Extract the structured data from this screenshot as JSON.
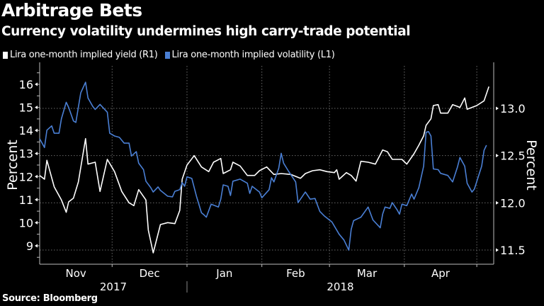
{
  "header": {
    "title": "Arbitrage Bets",
    "subtitle": "Currency volatility undermines high carry-trade potential"
  },
  "footer": {
    "source": "Source: Bloomberg"
  },
  "chart_data": {
    "type": "line",
    "title": "Arbitrage Bets",
    "subtitle": "Currency volatility undermines high carry-trade potential",
    "legend_position": "top-left",
    "grid": true,
    "x_range": [
      "2017-11-01",
      "2018-05-08"
    ],
    "x_ticks": [
      {
        "date": "2017-11-01",
        "label": "Nov"
      },
      {
        "date": "2017-12-01",
        "label": "Dec"
      },
      {
        "date": "2018-01-01",
        "label": "Jan"
      },
      {
        "date": "2018-02-01",
        "label": "Feb"
      },
      {
        "date": "2018-03-01",
        "label": "Mar"
      },
      {
        "date": "2018-04-01",
        "label": "Apr"
      },
      {
        "date": "2018-05-01",
        "label": ""
      }
    ],
    "x_years": [
      {
        "label": "2017",
        "start": "2017-11-01",
        "end": "2018-01-01"
      },
      {
        "label": "2018",
        "start": "2018-01-01",
        "end": "2018-05-08"
      }
    ],
    "left_axis": {
      "label": "Percent",
      "range": [
        8.2,
        16.8
      ],
      "ticks": [
        9,
        10,
        11,
        12,
        13,
        14,
        15,
        16
      ],
      "tick_labels": [
        "9",
        "10",
        "11",
        "12",
        "13",
        "14",
        "15",
        "16"
      ]
    },
    "right_axis": {
      "label": "Percent",
      "range": [
        11.35,
        13.45
      ],
      "ticks": [
        11.5,
        12.0,
        12.5,
        13.0
      ],
      "tick_labels": [
        "11.5",
        "12.0",
        "12.5",
        "13.0"
      ]
    },
    "series": [
      {
        "name": "Lira one-month implied yield (R1)",
        "axis": "right",
        "color": "#ffffff",
        "points": [
          [
            "2017-11-01",
            12.29
          ],
          [
            "2017-11-03",
            12.25
          ],
          [
            "2017-11-04",
            12.45
          ],
          [
            "2017-11-07",
            12.17
          ],
          [
            "2017-11-10",
            12.03
          ],
          [
            "2017-11-12",
            11.9
          ],
          [
            "2017-11-13",
            12.01
          ],
          [
            "2017-11-15",
            12.05
          ],
          [
            "2017-11-17",
            12.22
          ],
          [
            "2017-11-20",
            12.68
          ],
          [
            "2017-11-21",
            12.41
          ],
          [
            "2017-11-24",
            12.43
          ],
          [
            "2017-11-26",
            12.12
          ],
          [
            "2017-11-29",
            12.46
          ],
          [
            "2017-12-02",
            12.33
          ],
          [
            "2017-12-05",
            12.12
          ],
          [
            "2017-12-08",
            12.0
          ],
          [
            "2017-12-10",
            11.97
          ],
          [
            "2017-12-12",
            12.14
          ],
          [
            "2017-12-15",
            12.03
          ],
          [
            "2017-12-16",
            11.71
          ],
          [
            "2017-12-18",
            11.47
          ],
          [
            "2017-12-21",
            11.77
          ],
          [
            "2017-12-24",
            11.79
          ],
          [
            "2017-12-27",
            11.78
          ],
          [
            "2017-12-29",
            11.92
          ],
          [
            "2017-12-30",
            12.25
          ],
          [
            "2018-01-01",
            12.4
          ],
          [
            "2018-01-04",
            12.5
          ],
          [
            "2018-01-07",
            12.38
          ],
          [
            "2018-01-10",
            12.33
          ],
          [
            "2018-01-12",
            12.43
          ],
          [
            "2018-01-15",
            12.47
          ],
          [
            "2018-01-16",
            12.31
          ],
          [
            "2018-01-19",
            12.35
          ],
          [
            "2018-01-20",
            12.43
          ],
          [
            "2018-01-23",
            12.39
          ],
          [
            "2018-01-26",
            12.29
          ],
          [
            "2018-01-29",
            12.29
          ],
          [
            "2018-01-31",
            12.34
          ],
          [
            "2018-02-03",
            12.38
          ],
          [
            "2018-02-06",
            12.3
          ],
          [
            "2018-02-09",
            12.31
          ],
          [
            "2018-02-13",
            12.3
          ],
          [
            "2018-02-17",
            12.26
          ],
          [
            "2018-02-19",
            12.31
          ],
          [
            "2018-02-22",
            12.34
          ],
          [
            "2018-02-25",
            12.35
          ],
          [
            "2018-02-28",
            12.33
          ],
          [
            "2018-03-03",
            12.32
          ],
          [
            "2018-03-04",
            12.35
          ],
          [
            "2018-03-05",
            12.25
          ],
          [
            "2018-03-08",
            12.32
          ],
          [
            "2018-03-10",
            12.29
          ],
          [
            "2018-03-12",
            12.23
          ],
          [
            "2018-03-14",
            12.44
          ],
          [
            "2018-03-17",
            12.43
          ],
          [
            "2018-03-20",
            12.41
          ],
          [
            "2018-03-23",
            12.56
          ],
          [
            "2018-03-25",
            12.54
          ],
          [
            "2018-03-27",
            12.46
          ],
          [
            "2018-03-31",
            12.46
          ],
          [
            "2018-04-02",
            12.41
          ],
          [
            "2018-04-05",
            12.52
          ],
          [
            "2018-04-07",
            12.61
          ],
          [
            "2018-04-09",
            12.71
          ],
          [
            "2018-04-10",
            12.82
          ],
          [
            "2018-04-12",
            12.89
          ],
          [
            "2018-04-13",
            13.03
          ],
          [
            "2018-04-15",
            13.04
          ],
          [
            "2018-04-16",
            12.95
          ],
          [
            "2018-04-19",
            12.95
          ],
          [
            "2018-04-21",
            13.04
          ],
          [
            "2018-04-23",
            13.02
          ],
          [
            "2018-04-24",
            13.01
          ],
          [
            "2018-04-26",
            13.11
          ],
          [
            "2018-04-27",
            12.99
          ],
          [
            "2018-05-01",
            13.03
          ],
          [
            "2018-05-04",
            13.08
          ],
          [
            "2018-05-06",
            13.23
          ]
        ]
      },
      {
        "name": "Lira one-month implied volatility (L1)",
        "axis": "left",
        "color": "#4a7fd4",
        "points": [
          [
            "2017-11-01",
            13.64
          ],
          [
            "2017-11-03",
            13.26
          ],
          [
            "2017-11-04",
            14.01
          ],
          [
            "2017-11-06",
            14.2
          ],
          [
            "2017-11-07",
            13.88
          ],
          [
            "2017-11-09",
            13.88
          ],
          [
            "2017-11-10",
            14.51
          ],
          [
            "2017-11-12",
            15.22
          ],
          [
            "2017-11-13",
            15.0
          ],
          [
            "2017-11-15",
            14.41
          ],
          [
            "2017-11-16",
            14.35
          ],
          [
            "2017-11-18",
            15.63
          ],
          [
            "2017-11-20",
            16.09
          ],
          [
            "2017-11-21",
            15.41
          ],
          [
            "2017-11-23",
            15.04
          ],
          [
            "2017-11-24",
            14.91
          ],
          [
            "2017-11-26",
            15.13
          ],
          [
            "2017-11-29",
            14.79
          ],
          [
            "2017-11-30",
            13.88
          ],
          [
            "2017-12-02",
            13.76
          ],
          [
            "2017-12-04",
            13.7
          ],
          [
            "2017-12-06",
            13.45
          ],
          [
            "2017-12-08",
            13.45
          ],
          [
            "2017-12-09",
            12.89
          ],
          [
            "2017-12-11",
            13.08
          ],
          [
            "2017-12-12",
            12.58
          ],
          [
            "2017-12-14",
            12.3
          ],
          [
            "2017-12-15",
            11.8
          ],
          [
            "2017-12-17",
            11.52
          ],
          [
            "2017-12-18",
            11.33
          ],
          [
            "2017-12-20",
            11.55
          ],
          [
            "2017-12-21",
            11.4
          ],
          [
            "2017-12-24",
            11.15
          ],
          [
            "2017-12-26",
            11.12
          ],
          [
            "2017-12-27",
            11.36
          ],
          [
            "2017-12-29",
            11.43
          ],
          [
            "2017-12-30",
            11.74
          ],
          [
            "2017-12-31",
            11.58
          ],
          [
            "2018-01-01",
            11.99
          ],
          [
            "2018-01-03",
            11.92
          ],
          [
            "2018-01-04",
            11.52
          ],
          [
            "2018-01-05",
            11.12
          ],
          [
            "2018-01-07",
            10.43
          ],
          [
            "2018-01-08",
            10.34
          ],
          [
            "2018-01-09",
            10.24
          ],
          [
            "2018-01-11",
            10.8
          ],
          [
            "2018-01-14",
            10.68
          ],
          [
            "2018-01-15",
            11.02
          ],
          [
            "2018-01-16",
            11.64
          ],
          [
            "2018-01-18",
            11.58
          ],
          [
            "2018-01-19",
            11.18
          ],
          [
            "2018-01-20",
            11.8
          ],
          [
            "2018-01-23",
            11.89
          ],
          [
            "2018-01-26",
            11.71
          ],
          [
            "2018-01-27",
            11.27
          ],
          [
            "2018-01-28",
            11.58
          ],
          [
            "2018-01-31",
            11.33
          ],
          [
            "2018-02-01",
            11.08
          ],
          [
            "2018-02-04",
            11.43
          ],
          [
            "2018-02-05",
            11.95
          ],
          [
            "2018-02-06",
            11.77
          ],
          [
            "2018-02-08",
            12.36
          ],
          [
            "2018-02-09",
            13.01
          ],
          [
            "2018-02-10",
            12.58
          ],
          [
            "2018-02-12",
            12.24
          ],
          [
            "2018-02-15",
            11.77
          ],
          [
            "2018-02-16",
            10.87
          ],
          [
            "2018-02-19",
            11.33
          ],
          [
            "2018-02-21",
            11.02
          ],
          [
            "2018-02-23",
            11.05
          ],
          [
            "2018-02-25",
            10.49
          ],
          [
            "2018-02-27",
            10.28
          ],
          [
            "2018-03-02",
            10.03
          ],
          [
            "2018-03-05",
            9.5
          ],
          [
            "2018-03-07",
            9.25
          ],
          [
            "2018-03-09",
            8.81
          ],
          [
            "2018-03-10",
            9.71
          ],
          [
            "2018-03-11",
            10.09
          ],
          [
            "2018-03-14",
            10.24
          ],
          [
            "2018-03-17",
            10.68
          ],
          [
            "2018-03-19",
            10.12
          ],
          [
            "2018-03-22",
            9.78
          ],
          [
            "2018-03-23",
            10.37
          ],
          [
            "2018-03-24",
            10.68
          ],
          [
            "2018-03-26",
            10.62
          ],
          [
            "2018-03-27",
            10.87
          ],
          [
            "2018-03-29",
            10.56
          ],
          [
            "2018-03-30",
            10.37
          ],
          [
            "2018-03-31",
            10.8
          ],
          [
            "2018-04-02",
            10.74
          ],
          [
            "2018-04-04",
            11.24
          ],
          [
            "2018-04-05",
            11.02
          ],
          [
            "2018-04-07",
            11.52
          ],
          [
            "2018-04-09",
            12.45
          ],
          [
            "2018-04-10",
            13.92
          ],
          [
            "2018-04-11",
            13.95
          ],
          [
            "2018-04-12",
            13.76
          ],
          [
            "2018-04-13",
            12.33
          ],
          [
            "2018-04-15",
            12.3
          ],
          [
            "2018-04-16",
            12.14
          ],
          [
            "2018-04-19",
            12.05
          ],
          [
            "2018-04-21",
            11.77
          ],
          [
            "2018-04-23",
            12.42
          ],
          [
            "2018-04-24",
            12.83
          ],
          [
            "2018-04-26",
            12.45
          ],
          [
            "2018-04-27",
            11.71
          ],
          [
            "2018-04-29",
            11.33
          ],
          [
            "2018-04-30",
            11.46
          ],
          [
            "2018-05-03",
            12.45
          ],
          [
            "2018-05-04",
            13.14
          ],
          [
            "2018-05-05",
            13.36
          ]
        ]
      }
    ]
  }
}
